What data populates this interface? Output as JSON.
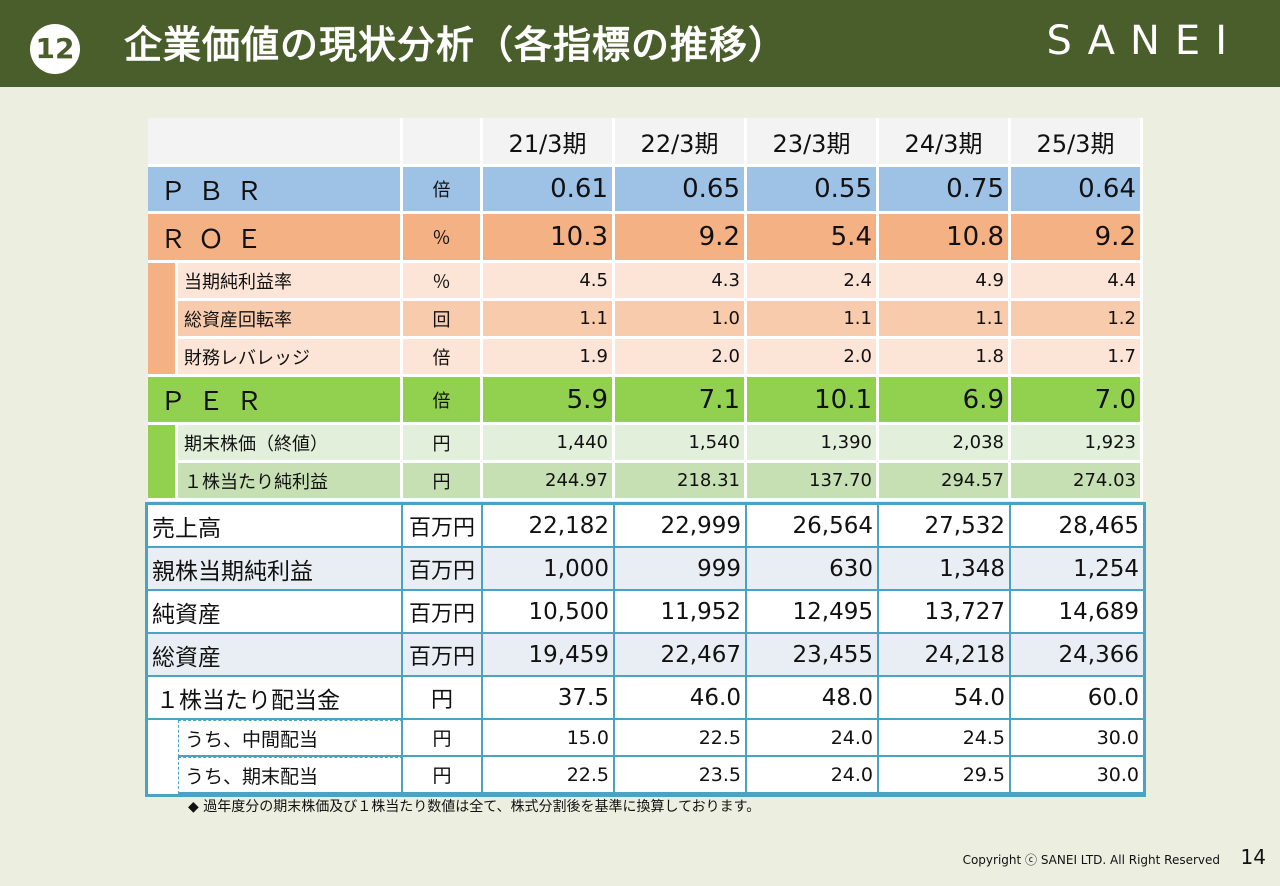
{
  "header": {
    "badge": "12",
    "title": "企業価値の現状分析（各指標の推移）",
    "logo": "SANEI"
  },
  "years": [
    "21/3期",
    "22/3期",
    "23/3期",
    "24/3期",
    "25/3期"
  ],
  "valuation": {
    "pbr": {
      "label": "ＰＢＲ",
      "unit": "倍",
      "values": [
        "0.61",
        "0.65",
        "0.55",
        "0.75",
        "0.64"
      ]
    },
    "roe": {
      "label": "ＲＯＥ",
      "unit": "％",
      "values": [
        "10.3",
        "9.2",
        "5.4",
        "10.8",
        "9.2"
      ]
    },
    "roe_sub": [
      {
        "label": "当期純利益率",
        "unit": "％",
        "values": [
          "4.5",
          "4.3",
          "2.4",
          "4.9",
          "4.4"
        ]
      },
      {
        "label": "総資産回転率",
        "unit": "回",
        "values": [
          "1.1",
          "1.0",
          "1.1",
          "1.1",
          "1.2"
        ]
      },
      {
        "label": "財務レバレッジ",
        "unit": "倍",
        "values": [
          "1.9",
          "2.0",
          "2.0",
          "1.8",
          "1.7"
        ]
      }
    ],
    "per": {
      "label": "ＰＥＲ",
      "unit": "倍",
      "values": [
        "5.9",
        "7.1",
        "10.1",
        "6.9",
        "7.0"
      ]
    },
    "per_sub": [
      {
        "label": "期末株価（終値）",
        "unit": "円",
        "values": [
          "1,440",
          "1,540",
          "1,390",
          "2,038",
          "1,923"
        ]
      },
      {
        "label": "１株当たり純利益",
        "unit": "円",
        "values": [
          "244.97",
          "218.31",
          "137.70",
          "294.57",
          "274.03"
        ]
      }
    ]
  },
  "financials": [
    {
      "label": "売上高",
      "unit": "百万円",
      "values": [
        "22,182",
        "22,999",
        "26,564",
        "27,532",
        "28,465"
      ]
    },
    {
      "label": "親株当期純利益",
      "unit": "百万円",
      "values": [
        "1,000",
        "999",
        "630",
        "1,348",
        "1,254"
      ]
    },
    {
      "label": "純資産",
      "unit": "百万円",
      "values": [
        "10,500",
        "11,952",
        "12,495",
        "13,727",
        "14,689"
      ]
    },
    {
      "label": "総資産",
      "unit": "百万円",
      "values": [
        "19,459",
        "22,467",
        "23,455",
        "24,218",
        "24,366"
      ]
    },
    {
      "label": "１株当たり配当金",
      "unit": "円",
      "values": [
        "37.5",
        "46.0",
        "48.0",
        "54.0",
        "60.0"
      ]
    }
  ],
  "dividends": [
    {
      "label": "うち、中間配当",
      "unit": "円",
      "values": [
        "15.0",
        "22.5",
        "24.0",
        "24.5",
        "30.0"
      ]
    },
    {
      "label": "うち、期末配当",
      "unit": "円",
      "values": [
        "22.5",
        "23.5",
        "24.0",
        "29.5",
        "30.0"
      ]
    }
  ],
  "footnote": "◆ 過年度分の期末株価及び１株当たり数値は全て、株式分割後を基準に換算しております。",
  "copyright": "Copyright ⓒ SANEI LTD. All Right Reserved",
  "page_number": "14"
}
